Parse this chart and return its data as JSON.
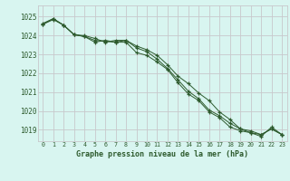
{
  "title": "Graphe pression niveau de la mer (hPa)",
  "bg_color": "#d8f5f0",
  "grid_color": "#c8c8cc",
  "line_color": "#2d5a2d",
  "x_ticks": [
    0,
    1,
    2,
    3,
    4,
    5,
    6,
    7,
    8,
    9,
    10,
    11,
    12,
    13,
    14,
    15,
    16,
    17,
    18,
    19,
    20,
    21,
    22,
    23
  ],
  "y_ticks": [
    1019,
    1020,
    1021,
    1022,
    1023,
    1024,
    1025
  ],
  "ylim": [
    1018.4,
    1025.6
  ],
  "xlim": [
    -0.5,
    23.5
  ],
  "series": [
    [
      1024.6,
      1024.85,
      1024.55,
      1024.05,
      1023.95,
      1023.75,
      1023.7,
      1023.65,
      1023.65,
      1023.1,
      1022.95,
      1022.6,
      1022.2,
      1021.5,
      1020.9,
      1020.55,
      1019.95,
      1019.65,
      1019.15,
      1018.95,
      1018.85,
      1018.75,
      1019.05,
      1018.75
    ],
    [
      1024.65,
      1024.9,
      1024.55,
      1024.05,
      1024.0,
      1023.85,
      1023.65,
      1023.75,
      1023.75,
      1023.45,
      1023.25,
      1022.95,
      1022.45,
      1021.85,
      1021.45,
      1020.95,
      1020.55,
      1019.95,
      1019.55,
      1019.05,
      1018.85,
      1018.65,
      1019.15,
      1018.75
    ],
    [
      1024.6,
      1024.9,
      1024.55,
      1024.05,
      1023.95,
      1023.65,
      1023.75,
      1023.65,
      1023.75,
      1023.35,
      1023.15,
      1022.75,
      1022.25,
      1021.65,
      1021.05,
      1020.65,
      1020.05,
      1019.75,
      1019.35,
      1019.05,
      1018.95,
      1018.75,
      1019.05,
      1018.75
    ]
  ]
}
